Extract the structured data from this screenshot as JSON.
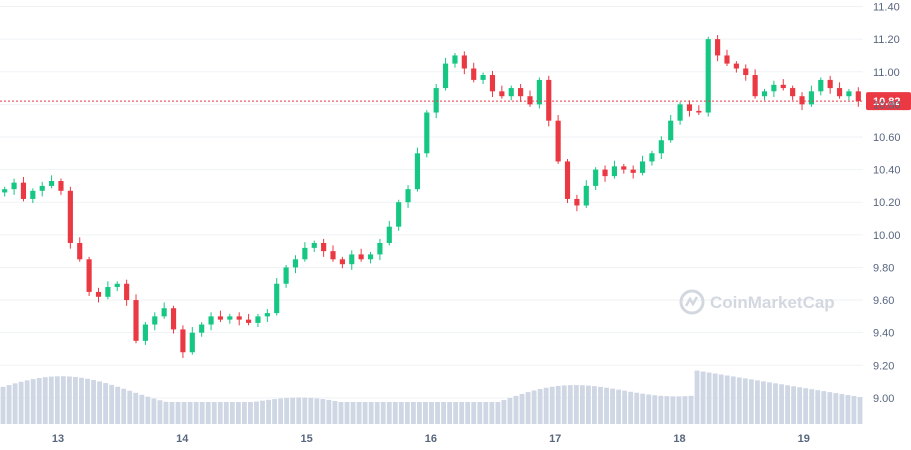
{
  "chart_data": {
    "type": "candlestick",
    "watermark": "CoinMarketCap",
    "current_price": "10.82",
    "y_ticks": [
      "11.40",
      "11.20",
      "11.00",
      "10.80",
      "10.60",
      "10.40",
      "10.20",
      "10.00",
      "9.80",
      "9.60",
      "9.40",
      "9.20",
      "9.00"
    ],
    "x_ticks": [
      "13",
      "14",
      "15",
      "16",
      "17",
      "18",
      "19"
    ],
    "ylim": [
      8.84,
      11.44
    ],
    "grid": true,
    "colors": {
      "up": "#16c784",
      "down": "#ea3943",
      "volume": "#cfd6e4",
      "grid": "#eff2f5",
      "price_line": "#ea3943"
    },
    "close_path": [
      10.28,
      10.32,
      10.22,
      10.27,
      10.3,
      10.33,
      10.27,
      9.95,
      9.85,
      9.65,
      9.62,
      9.68,
      9.7,
      9.6,
      9.35,
      9.45,
      9.5,
      9.55,
      9.42,
      9.28,
      9.4,
      9.45,
      9.5,
      9.48,
      9.5,
      9.48,
      9.46,
      9.5,
      9.52,
      9.7,
      9.8,
      9.85,
      9.92,
      9.95,
      9.9,
      9.85,
      9.82,
      9.88,
      9.85,
      9.88,
      9.95,
      10.05,
      10.2,
      10.28,
      10.5,
      10.75,
      10.9,
      11.05,
      11.1,
      11.02,
      10.95,
      10.98,
      10.88,
      10.85,
      10.9,
      10.85,
      10.8,
      10.95,
      10.7,
      10.45,
      10.22,
      10.18,
      10.3,
      10.4,
      10.36,
      10.42,
      10.4,
      10.38,
      10.45,
      10.5,
      10.58,
      10.7,
      10.8,
      10.76,
      10.75,
      11.2,
      11.1,
      11.05,
      11.02,
      10.98,
      10.85,
      10.88,
      10.92,
      10.9,
      10.85,
      10.8,
      10.88,
      10.95,
      10.9,
      10.85,
      10.88,
      10.82
    ]
  }
}
